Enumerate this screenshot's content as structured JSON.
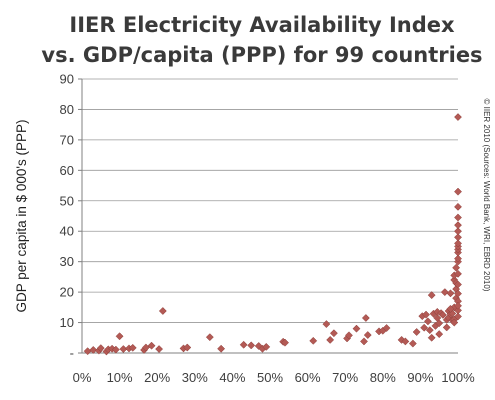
{
  "colors": {
    "marker": "#b35a55",
    "marker_stroke": "#8c3f3b",
    "grid": "#9a9a9a"
  },
  "chart_data": {
    "type": "scatter",
    "title": [
      "IIER Electricity Availability Index",
      "vs. GDP/capita (PPP) for 99 countries"
    ],
    "xlabel": "",
    "ylabel": "GDP per capita in $ 000's (PPP)",
    "source_note": "© IIER 2010 (Sources: World Bank, WRI, EBRD 2010)",
    "xlim": [
      0,
      100
    ],
    "ylim": [
      0,
      90
    ],
    "x_ticks": [
      {
        "value": 0,
        "label": "0%"
      },
      {
        "value": 10,
        "label": "10%"
      },
      {
        "value": 20,
        "label": "20%"
      },
      {
        "value": 30,
        "label": "30%"
      },
      {
        "value": 40,
        "label": "40%"
      },
      {
        "value": 50,
        "label": "50%"
      },
      {
        "value": 60,
        "label": "60%"
      },
      {
        "value": 70,
        "label": "70%"
      },
      {
        "value": 80,
        "label": "80%"
      },
      {
        "value": 90,
        "label": "90%"
      },
      {
        "value": 100,
        "label": "100%"
      }
    ],
    "y_ticks": [
      {
        "value": 0,
        "label": "-"
      },
      {
        "value": 10,
        "label": "10"
      },
      {
        "value": 20,
        "label": "20"
      },
      {
        "value": 30,
        "label": "30"
      },
      {
        "value": 40,
        "label": "40"
      },
      {
        "value": 50,
        "label": "50"
      },
      {
        "value": 60,
        "label": "60"
      },
      {
        "value": 70,
        "label": "70"
      },
      {
        "value": 80,
        "label": "80"
      },
      {
        "value": 90,
        "label": "90"
      }
    ],
    "grid": true,
    "legend": "none",
    "points": [
      [
        1.5,
        0.6
      ],
      [
        3,
        1
      ],
      [
        4.5,
        0.8
      ],
      [
        5,
        1.6
      ],
      [
        6.5,
        0.5
      ],
      [
        7,
        1.2
      ],
      [
        8,
        1.4
      ],
      [
        9,
        1.1
      ],
      [
        10,
        5.5
      ],
      [
        11,
        1.3
      ],
      [
        12.5,
        1.5
      ],
      [
        13.5,
        1.7
      ],
      [
        16.5,
        1
      ],
      [
        17,
        1.8
      ],
      [
        18.5,
        2.4
      ],
      [
        20.5,
        1.3
      ],
      [
        21.5,
        13.8
      ],
      [
        27,
        1.5
      ],
      [
        28,
        1.8
      ],
      [
        34,
        5.2
      ],
      [
        37,
        1.4
      ],
      [
        43,
        2.7
      ],
      [
        45,
        2.5
      ],
      [
        47,
        2.3
      ],
      [
        48,
        1.4
      ],
      [
        49,
        2
      ],
      [
        53.5,
        3.7
      ],
      [
        54,
        3.4
      ],
      [
        61.5,
        4
      ],
      [
        65,
        9.5
      ],
      [
        66,
        4.3
      ],
      [
        67,
        6.5
      ],
      [
        70.5,
        4.8
      ],
      [
        71,
        5.8
      ],
      [
        73,
        8
      ],
      [
        75,
        3.8
      ],
      [
        75.5,
        11.5
      ],
      [
        76,
        5.9
      ],
      [
        79,
        7.1
      ],
      [
        80,
        7.3
      ],
      [
        81,
        8.2
      ],
      [
        85,
        4.3
      ],
      [
        86,
        3.8
      ],
      [
        88,
        3.1
      ],
      [
        89,
        6.9
      ],
      [
        90.5,
        12.1
      ],
      [
        91,
        8.3
      ],
      [
        91.5,
        12.6
      ],
      [
        92,
        10.4
      ],
      [
        92.5,
        7.5
      ],
      [
        93,
        5
      ],
      [
        93,
        19
      ],
      [
        93.5,
        12.9
      ],
      [
        94,
        8.9
      ],
      [
        94.5,
        11.5
      ],
      [
        94.5,
        13.5
      ],
      [
        95,
        9.8
      ],
      [
        95,
        6.2
      ],
      [
        95.5,
        13.1
      ],
      [
        96,
        12.5
      ],
      [
        96.5,
        20
      ],
      [
        97,
        10.9
      ],
      [
        97,
        8.4
      ],
      [
        97.5,
        11.6
      ],
      [
        97.5,
        13.8
      ],
      [
        98,
        19.6
      ],
      [
        98,
        12.8
      ],
      [
        98.5,
        10.8
      ],
      [
        98.5,
        13
      ],
      [
        99,
        11
      ],
      [
        99,
        15
      ],
      [
        99,
        24
      ],
      [
        99,
        25.5
      ],
      [
        99.5,
        18
      ],
      [
        99.5,
        21
      ],
      [
        99.5,
        23
      ],
      [
        99.5,
        28
      ],
      [
        100,
        30
      ],
      [
        100,
        31
      ],
      [
        100,
        33
      ],
      [
        100,
        34
      ],
      [
        100,
        35
      ],
      [
        100,
        36
      ],
      [
        100,
        38
      ],
      [
        100,
        40
      ],
      [
        100,
        42
      ],
      [
        100,
        44.5
      ],
      [
        100,
        48
      ],
      [
        100,
        53
      ],
      [
        100,
        22.5
      ],
      [
        100,
        26
      ],
      [
        100,
        19.5
      ],
      [
        100,
        17
      ],
      [
        100,
        14
      ],
      [
        100,
        12
      ],
      [
        100,
        15.5
      ],
      [
        99,
        10
      ],
      [
        98,
        14.5
      ],
      [
        100,
        77.5
      ]
    ]
  }
}
